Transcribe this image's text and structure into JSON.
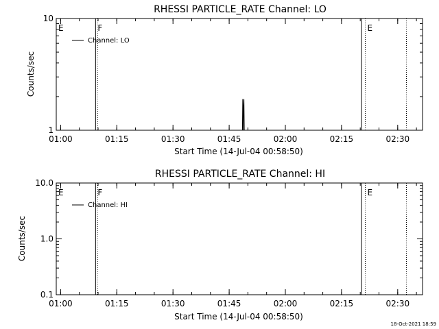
{
  "x_ticks": [
    "01:00",
    "01:15",
    "01:30",
    "01:45",
    "02:00",
    "02:15",
    "02:30"
  ],
  "xlabel": "Start Time (14-Jul-04 00:58:50)",
  "timestamp": "18-Oct-2021 18:59",
  "chart_data": [
    {
      "type": "line",
      "title": "RHESSI PARTICLE_RATE Channel: LO",
      "xlabel": "Start Time (14-Jul-04 00:58:50)",
      "ylabel": "Counts/sec",
      "yscale": "log",
      "ylim": [
        1,
        10
      ],
      "y_tick_values": [
        1,
        10
      ],
      "y_ticks": [
        "1",
        "10"
      ],
      "x_range_minutes_after_start": [
        0,
        97.8
      ],
      "x_tick_minutes": [
        1.17,
        16.17,
        31.17,
        46.17,
        61.17,
        76.17,
        91.17
      ],
      "legend": "Channel: LO",
      "legend_position": "top-left",
      "markers": [
        {
          "label": "E",
          "minute": 0
        },
        {
          "label": "F",
          "minute": 10.5
        },
        {
          "label": "",
          "minute": 11.0
        },
        {
          "label": "",
          "minute": 81.5
        },
        {
          "label": "E",
          "minute": 82.5
        },
        {
          "label": "",
          "minute": 93.5
        }
      ],
      "series": [
        {
          "x": [
            0,
            49.7,
            49.8,
            49.9,
            50.0,
            50.1,
            50.2,
            97.8
          ],
          "y": [
            1,
            1,
            1.9,
            1,
            1.6,
            1.9,
            1,
            1
          ]
        }
      ]
    },
    {
      "type": "line",
      "title": "RHESSI PARTICLE_RATE Channel: HI",
      "xlabel": "Start Time (14-Jul-04 00:58:50)",
      "ylabel": "Counts/sec",
      "yscale": "log",
      "ylim": [
        0.1,
        10
      ],
      "y_tick_values": [
        0.1,
        1,
        10
      ],
      "y_ticks": [
        "0.1",
        "1.0",
        "10.0"
      ],
      "x_range_minutes_after_start": [
        0,
        97.8
      ],
      "x_tick_minutes": [
        1.17,
        16.17,
        31.17,
        46.17,
        61.17,
        76.17,
        91.17
      ],
      "legend": "Channel: HI",
      "legend_position": "top-left",
      "markers": [
        {
          "label": "E",
          "minute": 0
        },
        {
          "label": "F",
          "minute": 10.5
        },
        {
          "label": "",
          "minute": 11.0
        },
        {
          "label": "",
          "minute": 81.5
        },
        {
          "label": "E",
          "minute": 82.5
        },
        {
          "label": "",
          "minute": 93.5
        }
      ],
      "series": []
    }
  ]
}
